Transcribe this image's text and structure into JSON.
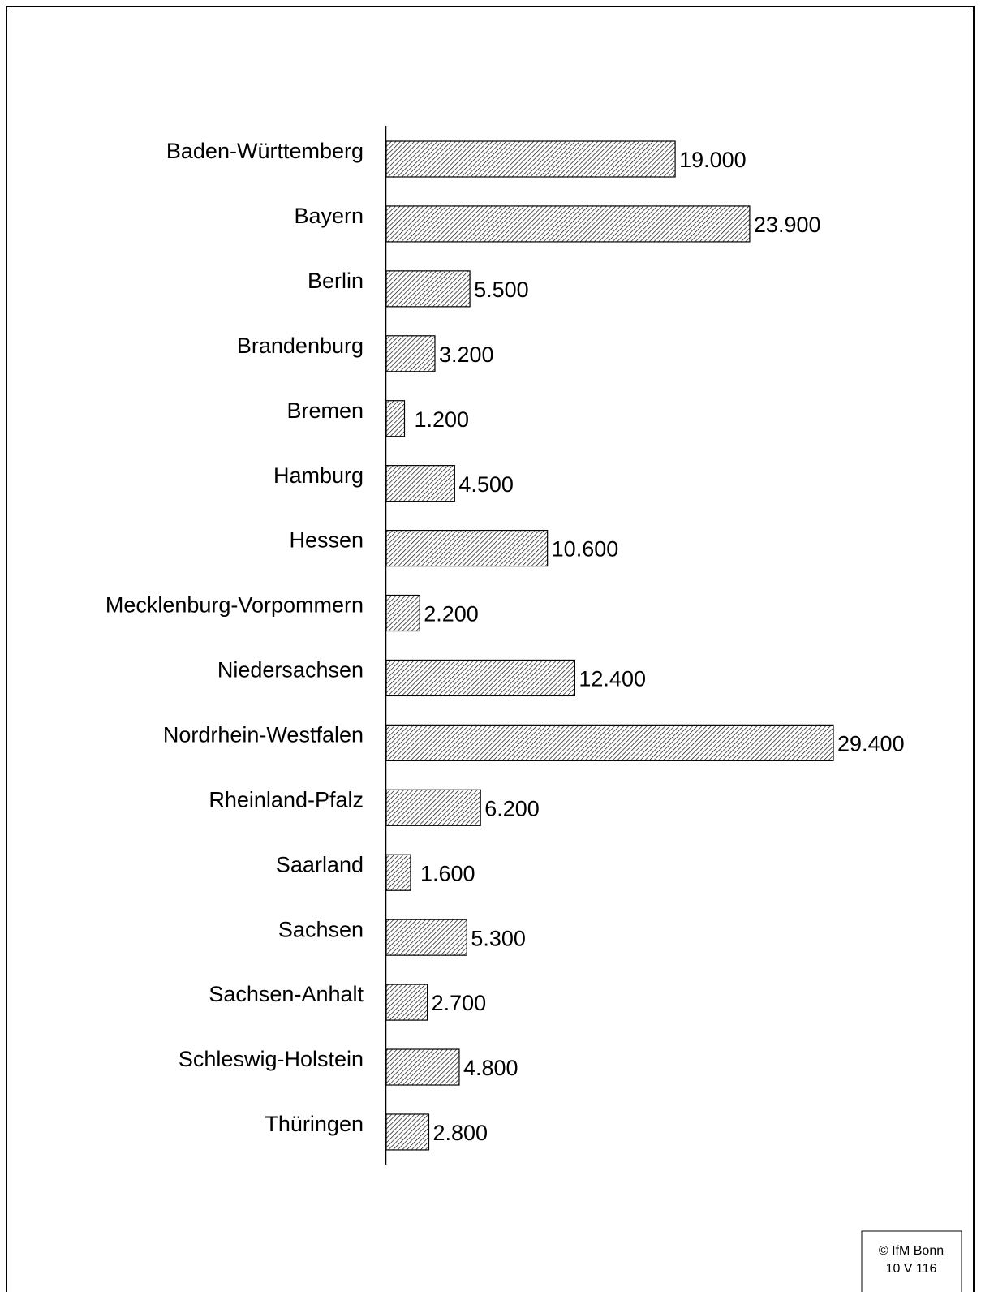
{
  "chart_data": {
    "type": "bar",
    "orientation": "horizontal",
    "categories": [
      "Baden-Württemberg",
      "Bayern",
      "Berlin",
      "Brandenburg",
      "Bremen",
      "Hamburg",
      "Hessen",
      "Mecklenburg-Vorpommern",
      "Niedersachsen",
      "Nordrhein-Westfalen",
      "Rheinland-Pfalz",
      "Saarland",
      "Sachsen",
      "Sachsen-Anhalt",
      "Schleswig-Holstein",
      "Thüringen"
    ],
    "values": [
      19000,
      23900,
      5500,
      3200,
      1200,
      4500,
      10600,
      2200,
      12400,
      29400,
      6200,
      1600,
      5300,
      2700,
      4800,
      2800
    ],
    "value_labels": [
      "19.000",
      "23.900",
      "5.500",
      "3.200",
      "1.200",
      "4.500",
      "10.600",
      "2.200",
      "12.400",
      "29.400",
      "6.200",
      "1.600",
      "5.300",
      "2.700",
      "4.800",
      "2.800"
    ],
    "color": "#000000",
    "annotations": [
      "© IfM Bonn",
      "10 V 116"
    ]
  }
}
